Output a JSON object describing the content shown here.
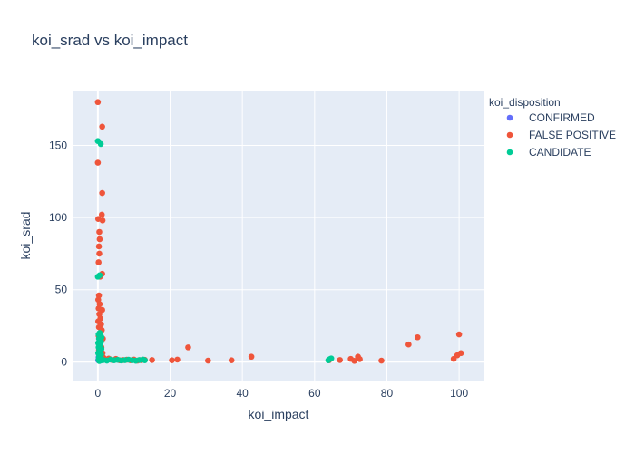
{
  "chart_data": {
    "type": "scatter",
    "title": "koi_srad vs koi_impact",
    "xlabel": "koi_impact",
    "ylabel": "koi_srad",
    "xlim": [
      -7,
      107
    ],
    "ylim": [
      -13,
      188
    ],
    "x_ticks": [
      0,
      20,
      40,
      60,
      80,
      100
    ],
    "y_ticks": [
      0,
      50,
      100,
      150
    ],
    "grid": true,
    "legend_placement": "top-right",
    "legend_title": "koi_disposition",
    "colors": {
      "plot_bg": "#e5ecf6",
      "grid": "#ffffff",
      "text": "#2a3f5f"
    },
    "series": [
      {
        "name": "CONFIRMED",
        "color": "#636efa",
        "points": [
          [
            0.1,
            1.0
          ],
          [
            0.3,
            2.0
          ],
          [
            0.5,
            0.9
          ],
          [
            0.7,
            1.3
          ],
          [
            0.2,
            3.1
          ],
          [
            0.4,
            1.7
          ],
          [
            0.6,
            0.8
          ],
          [
            0.8,
            1.1
          ],
          [
            0.9,
            2.4
          ]
        ]
      },
      {
        "name": "FALSE POSITIVE",
        "color": "#ef553b",
        "points": [
          [
            0.0,
            180.0
          ],
          [
            1.2,
            163.0
          ],
          [
            0.0,
            138.0
          ],
          [
            1.2,
            117.0
          ],
          [
            1.1,
            102.0
          ],
          [
            1.3,
            98.0
          ],
          [
            0.1,
            99.0
          ],
          [
            0.4,
            90.0
          ],
          [
            0.5,
            85.0
          ],
          [
            0.3,
            80.0
          ],
          [
            0.4,
            75.0
          ],
          [
            0.2,
            69.0
          ],
          [
            1.2,
            61.0
          ],
          [
            0.6,
            59.0
          ],
          [
            0.3,
            46.0
          ],
          [
            0.1,
            43.0
          ],
          [
            0.5,
            40.0
          ],
          [
            0.2,
            37.0
          ],
          [
            1.2,
            36.0
          ],
          [
            0.4,
            33.0
          ],
          [
            0.7,
            30.0
          ],
          [
            0.1,
            28.0
          ],
          [
            0.9,
            26.0
          ],
          [
            0.3,
            24.0
          ],
          [
            1.1,
            22.0
          ],
          [
            0.6,
            20.0
          ],
          [
            0.2,
            18.0
          ],
          [
            1.4,
            16.0
          ],
          [
            0.8,
            14.0
          ],
          [
            0.5,
            12.0
          ],
          [
            1.0,
            10.0
          ],
          [
            0.3,
            8.0
          ],
          [
            1.3,
            6.0
          ],
          [
            0.7,
            4.0
          ],
          [
            0.4,
            2.0
          ],
          [
            2.0,
            1.8
          ],
          [
            3.0,
            2.2
          ],
          [
            4.0,
            1.2
          ],
          [
            5.0,
            2.0
          ],
          [
            6.0,
            1.0
          ],
          [
            7.0,
            1.2
          ],
          [
            8.0,
            1.4
          ],
          [
            9.0,
            1.0
          ],
          [
            10.0,
            1.5
          ],
          [
            11.0,
            0.8
          ],
          [
            12.0,
            1.1
          ],
          [
            13.0,
            1.3
          ],
          [
            15.0,
            1.2
          ],
          [
            20.5,
            1.0
          ],
          [
            22.0,
            1.5
          ],
          [
            25.0,
            10.0
          ],
          [
            30.5,
            0.8
          ],
          [
            37.0,
            1.0
          ],
          [
            42.5,
            3.5
          ],
          [
            64.0,
            1.0
          ],
          [
            67.0,
            1.2
          ],
          [
            70.0,
            2.0
          ],
          [
            71.0,
            0.6
          ],
          [
            72.0,
            3.5
          ],
          [
            72.5,
            1.8
          ],
          [
            78.5,
            0.8
          ],
          [
            86.0,
            12.0
          ],
          [
            88.5,
            17.0
          ],
          [
            98.5,
            2.0
          ],
          [
            99.5,
            4.5
          ],
          [
            100.0,
            19.0
          ],
          [
            100.5,
            6.0
          ],
          [
            1.5,
            3.0
          ],
          [
            2.5,
            1.0
          ],
          [
            3.5,
            1.6
          ]
        ]
      },
      {
        "name": "CANDIDATE",
        "color": "#00cc96",
        "points": [
          [
            0.0,
            153.0
          ],
          [
            0.8,
            151.0
          ],
          [
            0.5,
            60.0
          ],
          [
            0.0,
            59.0
          ],
          [
            0.5,
            20.0
          ],
          [
            0.8,
            18.0
          ],
          [
            0.3,
            16.0
          ],
          [
            0.9,
            14.0
          ],
          [
            0.6,
            12.0
          ],
          [
            0.2,
            10.0
          ],
          [
            1.0,
            9.0
          ],
          [
            0.4,
            8.0
          ],
          [
            0.7,
            7.0
          ],
          [
            0.1,
            6.0
          ],
          [
            0.9,
            5.0
          ],
          [
            0.5,
            4.0
          ],
          [
            0.3,
            3.0
          ],
          [
            0.8,
            2.5
          ],
          [
            0.6,
            2.0
          ],
          [
            0.2,
            1.5
          ],
          [
            1.0,
            1.0
          ],
          [
            0.4,
            0.5
          ],
          [
            0.7,
            3.5
          ],
          [
            0.1,
            13.0
          ],
          [
            0.6,
            11.0
          ],
          [
            1.0,
            17.0
          ],
          [
            0.2,
            19.0
          ],
          [
            1.5,
            1.2
          ],
          [
            2.5,
            0.8
          ],
          [
            3.5,
            1.5
          ],
          [
            4.5,
            1.0
          ],
          [
            5.5,
            1.3
          ],
          [
            6.5,
            0.9
          ],
          [
            7.5,
            1.1
          ],
          [
            8.5,
            1.4
          ],
          [
            9.5,
            1.0
          ],
          [
            10.5,
            0.7
          ],
          [
            11.5,
            1.2
          ],
          [
            12.5,
            1.5
          ],
          [
            13.0,
            1.0
          ],
          [
            63.8,
            1.0
          ],
          [
            64.2,
            1.8
          ],
          [
            64.6,
            2.3
          ]
        ]
      }
    ]
  }
}
